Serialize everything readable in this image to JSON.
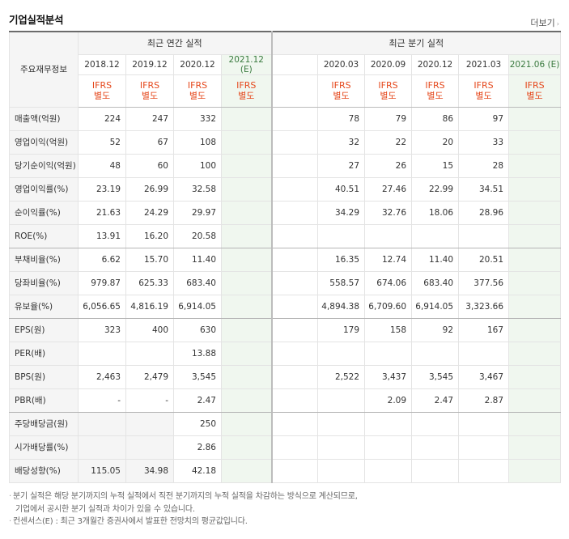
{
  "section_title": "기업실적분석",
  "more_label": "더보기",
  "row_header": "주요재무정보",
  "annual_label": "최근 연간 실적",
  "quarter_label": "최근 분기 실적",
  "annual_dates": [
    "2018.12",
    "2019.12",
    "2020.12",
    "2021.12"
  ],
  "quarter_dates": [
    "",
    "2020.03",
    "2020.09",
    "2020.12",
    "2021.03",
    "2021.06"
  ],
  "estimate_mark": "(E)",
  "standard_line1": "IFRS",
  "standard_line2": "별도",
  "rows": [
    {
      "label": "매출액(억원)",
      "annual": [
        "224",
        "247",
        "332",
        ""
      ],
      "quarter": [
        "",
        "78",
        "79",
        "86",
        "97",
        ""
      ]
    },
    {
      "label": "영업이익(억원)",
      "annual": [
        "52",
        "67",
        "108",
        ""
      ],
      "quarter": [
        "",
        "32",
        "22",
        "20",
        "33",
        ""
      ]
    },
    {
      "label": "당기순이익(억원)",
      "annual": [
        "48",
        "60",
        "100",
        ""
      ],
      "quarter": [
        "",
        "27",
        "26",
        "15",
        "28",
        ""
      ]
    },
    {
      "label": "영업이익률(%)",
      "annual": [
        "23.19",
        "26.99",
        "32.58",
        ""
      ],
      "quarter": [
        "",
        "40.51",
        "27.46",
        "22.99",
        "34.51",
        ""
      ]
    },
    {
      "label": "순이익률(%)",
      "annual": [
        "21.63",
        "24.29",
        "29.97",
        ""
      ],
      "quarter": [
        "",
        "34.29",
        "32.76",
        "18.06",
        "28.96",
        ""
      ]
    },
    {
      "label": "ROE(%)",
      "annual": [
        "13.91",
        "16.20",
        "20.58",
        ""
      ],
      "quarter": [
        "",
        "",
        "",
        "",
        "",
        ""
      ]
    },
    {
      "label": "부채비율(%)",
      "annual": [
        "6.62",
        "15.70",
        "11.40",
        ""
      ],
      "quarter": [
        "",
        "16.35",
        "12.74",
        "11.40",
        "20.51",
        ""
      ]
    },
    {
      "label": "당좌비율(%)",
      "annual": [
        "979.87",
        "625.33",
        "683.40",
        ""
      ],
      "quarter": [
        "",
        "558.57",
        "674.06",
        "683.40",
        "377.56",
        ""
      ]
    },
    {
      "label": "유보율(%)",
      "annual": [
        "6,056.65",
        "4,816.19",
        "6,914.05",
        ""
      ],
      "quarter": [
        "",
        "4,894.38",
        "6,709.60",
        "6,914.05",
        "3,323.66",
        ""
      ]
    },
    {
      "label": "EPS(원)",
      "annual": [
        "323",
        "400",
        "630",
        ""
      ],
      "quarter": [
        "",
        "179",
        "158",
        "92",
        "167",
        ""
      ]
    },
    {
      "label": "PER(배)",
      "annual": [
        "",
        "",
        "13.88",
        ""
      ],
      "quarter": [
        "",
        "",
        "",
        "",
        "",
        ""
      ]
    },
    {
      "label": "BPS(원)",
      "annual": [
        "2,463",
        "2,479",
        "3,545",
        ""
      ],
      "quarter": [
        "",
        "2,522",
        "3,437",
        "3,545",
        "3,467",
        ""
      ]
    },
    {
      "label": "PBR(배)",
      "annual": [
        "-",
        "-",
        "2.47",
        ""
      ],
      "quarter": [
        "",
        "",
        "2.09",
        "2.47",
        "2.87",
        ""
      ]
    },
    {
      "label": "주당배당금(원)",
      "annual": [
        "",
        "",
        "250",
        ""
      ],
      "quarter": [
        "",
        "",
        "",
        "",
        "",
        ""
      ]
    },
    {
      "label": "시가배당률(%)",
      "annual": [
        "",
        "",
        "2.86",
        ""
      ],
      "quarter": [
        "",
        "",
        "",
        "",
        "",
        ""
      ]
    },
    {
      "label": "배당성향(%)",
      "annual": [
        "115.05",
        "34.98",
        "42.18",
        ""
      ],
      "quarter": [
        "",
        "",
        "",
        "",
        "",
        ""
      ]
    }
  ],
  "notes": {
    "line1": "분기 실적은 해당 분기까지의 누적 실적에서 직전 분기까지의 누적 실적을 차감하는 방식으로 계산되므로,",
    "line2": "기업에서 공시한 분기 실적과 차이가 있을 수 있습니다.",
    "line3": "컨센서스(E) : 최근 3개월간 증권사에서 발표한 전망치의 평균값입니다."
  }
}
